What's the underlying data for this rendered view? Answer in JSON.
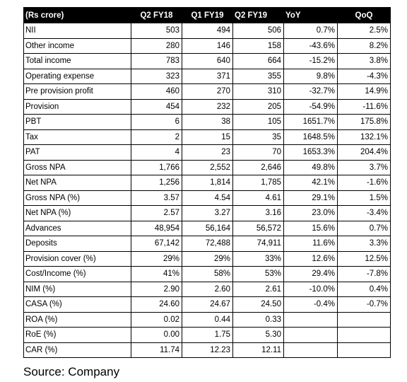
{
  "table": {
    "headers": [
      "(Rs crore)",
      "Q2 FY18",
      "Q1 FY19",
      "Q2 FY19",
      "YoY",
      "QoQ"
    ],
    "rows": [
      [
        "NII",
        "503",
        "494",
        "506",
        "0.7%",
        "2.5%"
      ],
      [
        "Other income",
        "280",
        "146",
        "158",
        "-43.6%",
        "8.2%"
      ],
      [
        "Total income",
        "783",
        "640",
        "664",
        "-15.2%",
        "3.8%"
      ],
      [
        "Operating expense",
        "323",
        "371",
        "355",
        "9.8%",
        "-4.3%"
      ],
      [
        "Pre provision profit",
        "460",
        "270",
        "310",
        "-32.7%",
        "14.9%"
      ],
      [
        "Provision",
        "454",
        "232",
        "205",
        "-54.9%",
        "-11.6%"
      ],
      [
        "PBT",
        "6",
        "38",
        "105",
        "1651.7%",
        "175.8%"
      ],
      [
        "Tax",
        "2",
        "15",
        "35",
        "1648.5%",
        "132.1%"
      ],
      [
        "PAT",
        "4",
        "23",
        "70",
        "1653.3%",
        "204.4%"
      ],
      [
        "Gross NPA",
        "1,766",
        "2,552",
        "2,646",
        "49.8%",
        "3.7%"
      ],
      [
        "Net NPA",
        "1,256",
        "1,814",
        "1,785",
        "42.1%",
        "-1.6%"
      ],
      [
        "Gross NPA  (%)",
        "3.57",
        "4.54",
        "4.61",
        "29.1%",
        "1.5%"
      ],
      [
        "Net NPA (%)",
        "2.57",
        "3.27",
        "3.16",
        "23.0%",
        "-3.4%"
      ],
      [
        "Advances",
        "48,954",
        "56,164",
        "56,572",
        "15.6%",
        "0.7%"
      ],
      [
        "Deposits",
        "67,142",
        "72,488",
        "74,911",
        "11.6%",
        "3.3%"
      ],
      [
        "Provision cover (%)",
        "29%",
        "29%",
        "33%",
        "12.6%",
        "12.5%"
      ],
      [
        "Cost/Income (%)",
        "41%",
        "58%",
        "53%",
        "29.4%",
        "-7.8%"
      ],
      [
        "NIM (%)",
        "2.90",
        "2.60",
        "2.61",
        "-10.0%",
        "0.4%"
      ],
      [
        "CASA (%)",
        "24.60",
        "24.67",
        "24.50",
        "-0.4%",
        "-0.7%"
      ],
      [
        "ROA (%)",
        "0.02",
        "0.44",
        "0.33",
        "",
        ""
      ],
      [
        "RoE (%)",
        "0.00",
        "1.75",
        "5.30",
        "",
        ""
      ],
      [
        "CAR (%)",
        "11.74",
        "12.23",
        "12.11",
        "",
        ""
      ]
    ]
  },
  "source": "Source: Company"
}
